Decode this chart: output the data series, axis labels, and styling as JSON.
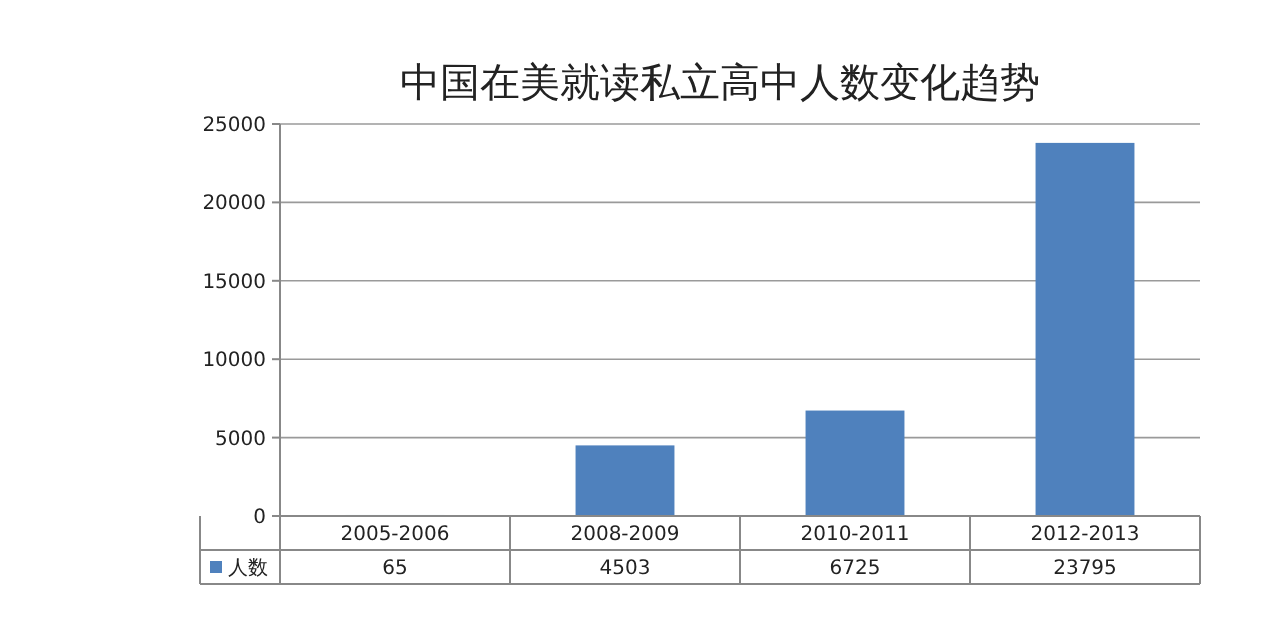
{
  "chart_data": {
    "type": "bar",
    "title": "中国在美就读私立高中人数变化趋势",
    "categories": [
      "2005-2006",
      "2008-2009",
      "2010-2011",
      "2012-2013"
    ],
    "series": [
      {
        "name": "人数",
        "color": "#4f81bd",
        "values": [
          65,
          4503,
          6725,
          23795
        ]
      }
    ],
    "ylim": [
      0,
      25000
    ],
    "yticks": [
      0,
      5000,
      10000,
      15000,
      20000,
      25000
    ],
    "grid": "y",
    "data_labels": true,
    "legend": "bottom"
  }
}
